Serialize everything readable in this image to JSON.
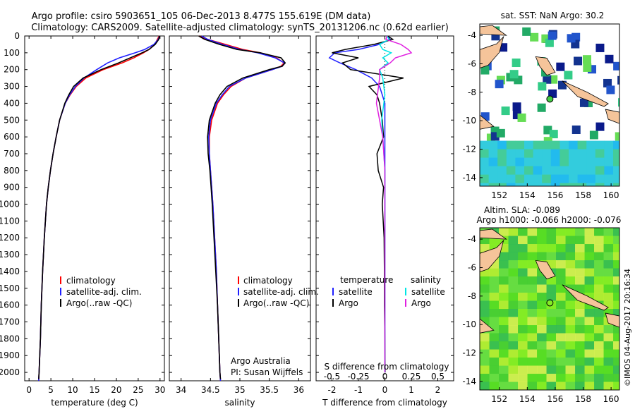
{
  "header": {
    "line1": "Argo profile: csiro 5903651_105 06-Dec-2013 8.477S 155.619E (DM data)",
    "line2": "Climatology: CARS2009. Satellite-adjusted climatology: synTS_20131206.nc (0.62d earlier)"
  },
  "colors": {
    "climatology": "#ff0000",
    "satellite": "#1f1fff",
    "argo": "#000000",
    "sat_salinity": "#00e5e5",
    "argo_salinity": "#e020e0"
  },
  "depth_axis": {
    "min": 0,
    "max": 2050,
    "ticks": [
      "0",
      "100",
      "200",
      "300",
      "400",
      "500",
      "600",
      "700",
      "800",
      "900",
      "1000",
      "1100",
      "1200",
      "1300",
      "1400",
      "1500",
      "1600",
      "1700",
      "1800",
      "1900",
      "2000"
    ]
  },
  "chart_data": [
    {
      "type": "line",
      "id": "temperature",
      "xlabel": "temperature (deg C)",
      "xlim": [
        -1,
        31
      ],
      "xticks": [
        "0",
        "5",
        "10",
        "15",
        "20",
        "25",
        "30"
      ],
      "ylabel": "depth",
      "legend": [
        "climatology",
        "satellite-adj. clim.",
        "Argo(..raw -QC)"
      ],
      "series": [
        {
          "name": "climatology",
          "depth": [
            0,
            20,
            50,
            80,
            100,
            130,
            160,
            200,
            250,
            300,
            350,
            400,
            500,
            600,
            700,
            800,
            900,
            1000,
            1200,
            1400,
            1600,
            1800,
            2000,
            2050
          ],
          "values": [
            29.8,
            29.4,
            28.8,
            27.5,
            26.2,
            24.0,
            21.3,
            17.0,
            13.0,
            10.8,
            9.4,
            8.3,
            7.0,
            6.2,
            5.5,
            4.9,
            4.4,
            4.0,
            3.5,
            3.1,
            2.8,
            2.6,
            2.3,
            2.2
          ]
        },
        {
          "name": "satellite-adj. clim.",
          "depth": [
            0,
            20,
            50,
            80,
            100,
            130,
            160,
            200,
            250,
            300,
            350,
            400,
            500,
            600,
            700,
            800,
            900,
            1000,
            1200,
            1400,
            1600,
            1800,
            2000,
            2050
          ],
          "values": [
            29.9,
            29.6,
            28.6,
            26.5,
            24.3,
            20.7,
            18.0,
            15.5,
            12.6,
            10.6,
            9.3,
            8.3,
            7.0,
            6.2,
            5.5,
            4.9,
            4.4,
            4.0,
            3.5,
            3.1,
            2.8,
            2.6,
            2.3,
            2.2
          ]
        },
        {
          "name": "Argo(..raw -QC)",
          "depth": [
            0,
            20,
            50,
            80,
            100,
            130,
            160,
            200,
            250,
            300,
            350,
            400,
            500,
            600,
            700,
            800,
            900,
            1000,
            1200,
            1400,
            1600,
            1800,
            2000,
            2040
          ],
          "values": [
            29.9,
            29.7,
            28.9,
            27.5,
            25.9,
            23.2,
            20.5,
            16.5,
            12.4,
            10.2,
            9.1,
            8.2,
            7.0,
            6.2,
            5.5,
            4.9,
            4.4,
            4.0,
            3.5,
            3.1,
            2.8,
            2.6,
            2.3,
            2.2
          ]
        }
      ]
    },
    {
      "type": "line",
      "id": "salinity",
      "xlabel": "salinity",
      "xlim": [
        33.8,
        36.2
      ],
      "xticks": [
        "34",
        "34.5",
        "35",
        "35.5",
        "36"
      ],
      "legend": [
        "climatology",
        "satellite-adj. clim.",
        "Argo(..raw -QC)"
      ],
      "annotation": [
        "Argo Australia",
        "PI: Susan Wijffels"
      ],
      "series": [
        {
          "name": "climatology",
          "depth": [
            0,
            20,
            50,
            80,
            100,
            130,
            160,
            180,
            200,
            250,
            300,
            350,
            400,
            500,
            600,
            700,
            800,
            900,
            1000,
            1200,
            1400,
            1600,
            1800,
            2000,
            2050
          ],
          "values": [
            34.3,
            34.45,
            34.75,
            35.05,
            35.35,
            35.62,
            35.75,
            35.7,
            35.55,
            35.1,
            34.85,
            34.72,
            34.62,
            34.52,
            34.48,
            34.48,
            34.5,
            34.52,
            34.54,
            34.57,
            34.6,
            34.62,
            34.64,
            34.66,
            34.67
          ]
        },
        {
          "name": "satellite-adj. clim.",
          "depth": [
            0,
            20,
            50,
            80,
            100,
            130,
            160,
            180,
            200,
            250,
            300,
            350,
            400,
            500,
            600,
            700,
            800,
            900,
            1000,
            1200,
            1400,
            1600,
            1800,
            2000,
            2050
          ],
          "values": [
            34.35,
            34.45,
            34.7,
            35.0,
            35.3,
            35.6,
            35.76,
            35.72,
            35.55,
            35.1,
            34.82,
            34.7,
            34.6,
            34.5,
            34.47,
            34.48,
            34.5,
            34.52,
            34.54,
            34.57,
            34.6,
            34.62,
            34.64,
            34.66,
            34.67
          ]
        },
        {
          "name": "Argo(..raw -QC)",
          "depth": [
            0,
            20,
            50,
            80,
            100,
            130,
            160,
            180,
            200,
            250,
            300,
            350,
            400,
            500,
            600,
            700,
            800,
            900,
            1000,
            1200,
            1400,
            1600,
            1800,
            2000,
            2040
          ],
          "values": [
            34.3,
            34.4,
            34.65,
            34.95,
            35.35,
            35.7,
            35.77,
            35.72,
            35.5,
            35.05,
            34.78,
            34.66,
            34.58,
            34.48,
            34.45,
            34.46,
            34.49,
            34.51,
            34.53,
            34.56,
            34.59,
            34.62,
            34.64,
            34.66,
            34.67
          ]
        }
      ]
    },
    {
      "type": "line",
      "id": "difference",
      "xlabel": "T difference from climatology",
      "xlim": [
        -2.6,
        2.6
      ],
      "xticks": [
        "-2",
        "-1",
        "0",
        "1",
        "2"
      ],
      "top_label": "S difference from climatology",
      "top_ticks": [
        "-0.5",
        "-0.25",
        "0",
        "0.25",
        "0.5"
      ],
      "legend_temperature_title": "temperature",
      "legend_salinity_title": "salinity",
      "legend_items": [
        "satellite",
        "Argo",
        "satellite",
        "Argo"
      ],
      "series": [
        {
          "name": "T satellite",
          "depth": [
            0,
            20,
            50,
            80,
            100,
            130,
            160,
            200,
            250,
            300,
            350,
            400,
            500,
            600,
            700,
            800,
            900,
            1000,
            1200,
            1400,
            1600,
            1800,
            2000
          ],
          "values": [
            0.1,
            0.2,
            -0.2,
            -1.0,
            -1.9,
            -2.1,
            -1.7,
            -1.1,
            -0.5,
            -0.2,
            -0.1,
            0,
            0,
            0,
            0,
            0,
            0,
            0,
            0,
            0,
            0,
            0,
            0
          ]
        },
        {
          "name": "T Argo",
          "depth": [
            0,
            20,
            50,
            80,
            100,
            130,
            160,
            200,
            250,
            300,
            350,
            400,
            500,
            600,
            700,
            800,
            900,
            1000,
            1200,
            1400,
            1600,
            1800,
            2000
          ],
          "values": [
            0.1,
            0.3,
            -0.4,
            -1.5,
            -2.0,
            -1.0,
            -1.6,
            -1.3,
            0.7,
            -0.6,
            -0.3,
            -0.2,
            -0.1,
            -0.05,
            -0.3,
            -0.25,
            -0.05,
            -0.1,
            -0.03,
            -0.02,
            -0.02,
            0,
            0.01
          ]
        },
        {
          "name": "S satellite",
          "depth": [
            0,
            20,
            50,
            80,
            100,
            130,
            160,
            200,
            250,
            300,
            350,
            400,
            500,
            600,
            700,
            800,
            900,
            1000,
            1200,
            1400,
            1600,
            1800,
            2000
          ],
          "values": [
            0.02,
            0.04,
            -0.05,
            -0.02,
            0.06,
            -0.02,
            0.03,
            -0.05,
            -0.02,
            -0.01,
            0,
            -0.01,
            -0.03,
            -0.02,
            -0.01,
            0,
            0,
            0,
            0,
            0,
            0,
            0,
            0
          ]
        },
        {
          "name": "S Argo",
          "depth": [
            0,
            20,
            50,
            80,
            100,
            130,
            160,
            200,
            250,
            300,
            350,
            400,
            500,
            600,
            700,
            800,
            900,
            1000,
            1200,
            1400,
            1600,
            1800,
            2000
          ],
          "values": [
            0.02,
            0.01,
            0.15,
            0.22,
            0.25,
            0.1,
            0.05,
            -0.05,
            -0.05,
            -0.06,
            -0.07,
            -0.08,
            -0.05,
            -0.02,
            -0.01,
            0,
            0,
            0,
            0,
            0,
            0,
            0,
            0
          ]
        }
      ]
    },
    {
      "type": "heatmap",
      "id": "sst_map",
      "title": "sat. SST: NaN Argo: 30.2",
      "xticks": [
        "152",
        "154",
        "156",
        "158",
        "160"
      ],
      "yticks": [
        "-4",
        "-6",
        "-8",
        "-10",
        "-12",
        "-14"
      ],
      "xlim": [
        150.6,
        160.6
      ],
      "ylim": [
        -14.6,
        -3.2
      ],
      "float_position": {
        "lon": 155.619,
        "lat": -8.477
      }
    },
    {
      "type": "heatmap",
      "id": "sla_map",
      "title_line1": "Altim. SLA: -0.089",
      "title_line2": "Argo h1000: -0.066 h2000: -0.076",
      "xticks": [
        "152",
        "154",
        "156",
        "158",
        "160"
      ],
      "yticks": [
        "-4",
        "-6",
        "-8",
        "-10",
        "-12",
        "-14"
      ],
      "xlim": [
        150.6,
        160.6
      ],
      "ylim": [
        -14.6,
        -3.2
      ],
      "float_position": {
        "lon": 155.619,
        "lat": -8.477
      }
    }
  ],
  "watermark": "©IMOS 04-Aug-2017 20:16:34"
}
